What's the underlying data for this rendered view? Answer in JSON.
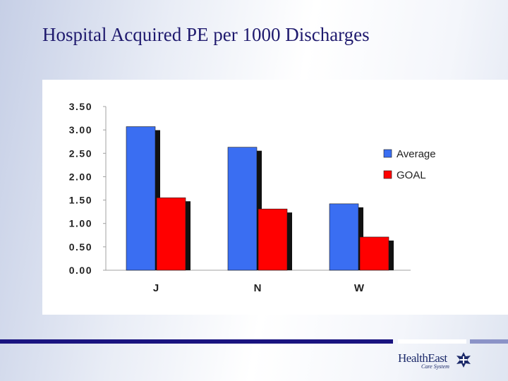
{
  "slide": {
    "title": "Hospital Acquired PE per 1000 Discharges"
  },
  "chart_data": {
    "type": "bar",
    "title": "Hospital Acquired PE per 1000 Discharges",
    "xlabel": "",
    "ylabel": "",
    "categories": [
      "J",
      "N",
      "W"
    ],
    "series": [
      {
        "name": "Average",
        "color": "#3a6ef2",
        "values": [
          3.07,
          2.63,
          1.42
        ]
      },
      {
        "name": "GOAL",
        "color": "#ff0000",
        "values": [
          1.55,
          1.31,
          0.71
        ]
      }
    ],
    "ylim": [
      0,
      3.5
    ],
    "yticks": [
      "3.50",
      "3.00",
      "2.50",
      "2.00",
      "1.50",
      "1.00",
      "0.50",
      "0.00"
    ],
    "ytick_values": [
      3.5,
      3.0,
      2.5,
      2.0,
      1.5,
      1.0,
      0.5,
      0.0
    ],
    "grid": false,
    "legend_position": "right"
  },
  "logo": {
    "name": "HealthEast",
    "subtitle": "Care System"
  }
}
